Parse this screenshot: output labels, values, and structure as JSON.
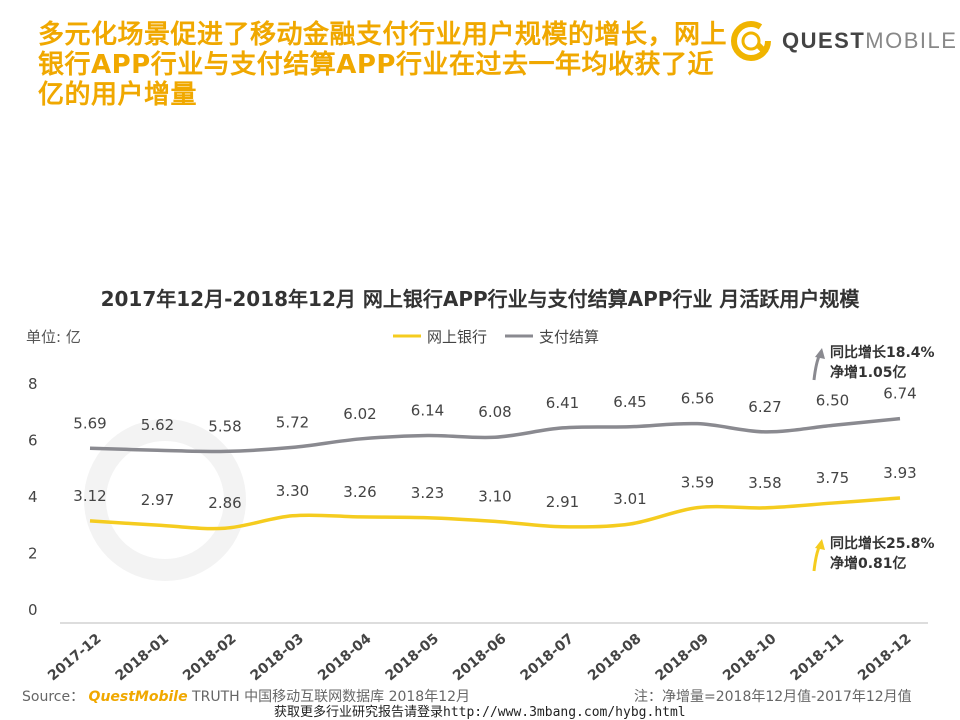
{
  "headline": "多元化场景促进了移动金融支付行业用户规模的增长，网上银行APP行业与支付结算APP行业在过去一年均收获了近亿的用户增量",
  "brand": {
    "name_bold": "QUEST",
    "name_light": "MOBILE",
    "accent_color": "#f0b400"
  },
  "footer": {
    "source_label": "Source：",
    "source_brand": "QuestMobile",
    "source_rest": " TRUTH 中国移动互联网数据库 2018年12月",
    "note": "注：净增量=2018年12月值-2017年12月值",
    "link": "获取更多行业研究报告请登录http://www.3mbang.com/hybg.html"
  },
  "chart_data": {
    "type": "line",
    "title": "2017年12月-2018年12月 网上银行APP行业与支付结算APP行业 月活跃用户规模",
    "unit_label": "单位: 亿",
    "categories": [
      "2017-12",
      "2018-01",
      "2018-02",
      "2018-03",
      "2018-04",
      "2018-05",
      "2018-06",
      "2018-07",
      "2018-08",
      "2018-09",
      "2018-10",
      "2018-11",
      "2018-12"
    ],
    "series": [
      {
        "name": "网上银行",
        "color": "#f5cc1f",
        "values": [
          3.12,
          2.97,
          2.86,
          3.3,
          3.26,
          3.23,
          3.1,
          2.91,
          3.01,
          3.59,
          3.58,
          3.75,
          3.93
        ]
      },
      {
        "name": "支付结算",
        "color": "#8a8a90",
        "values": [
          5.69,
          5.62,
          5.58,
          5.72,
          6.02,
          6.14,
          6.08,
          6.41,
          6.45,
          6.56,
          6.27,
          6.5,
          6.74
        ]
      }
    ],
    "ylim": [
      0,
      8
    ],
    "yticks": [
      0,
      2,
      4,
      6,
      8
    ],
    "legend_position": "top",
    "grid": false,
    "annotations": [
      {
        "series": "支付结算",
        "line1": "同比增长18.4%",
        "line2": "净增1.05亿"
      },
      {
        "series": "网上银行",
        "line1": "同比增长25.8%",
        "line2": "净增0.81亿"
      }
    ]
  }
}
